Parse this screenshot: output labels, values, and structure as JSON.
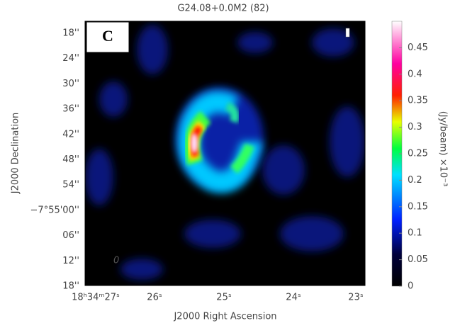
{
  "chart_data": {
    "type": "image",
    "title": "G24.08+0.0M2 (82)",
    "panel_label": "C",
    "annotation": "0",
    "xlabel": "J2000 Right Ascension",
    "ylabel": "J2000 Declination",
    "xtick_labels": [
      "18ʰ34ᵐ27ˢ",
      "26ˢ",
      "25ˢ",
      "24ˢ",
      "23ˢ"
    ],
    "ytick_labels": [
      "18''",
      "24''",
      "30''",
      "36''",
      "42''",
      "48''",
      "54''",
      "−7°55'00''",
      "06''",
      "12''",
      "18''"
    ],
    "colorbar_label": "(Jy/beam)  ×10⁻³",
    "clim": [
      0,
      0.5
    ],
    "cticks": [
      0,
      0.05,
      0.1,
      0.15,
      0.2,
      0.25,
      0.3,
      0.35,
      0.4,
      0.45
    ]
  }
}
